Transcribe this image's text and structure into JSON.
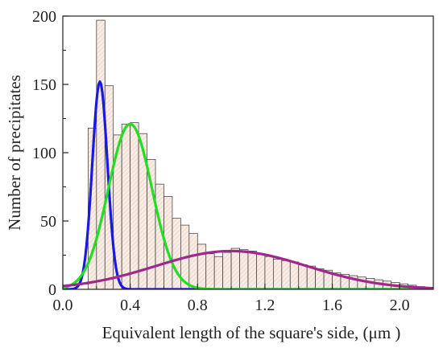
{
  "chart_data": {
    "type": "bar",
    "xlabel": "Equivalent length of the square's side,  (μm )",
    "ylabel": "Number of precipitates",
    "xlim": [
      0.0,
      2.2
    ],
    "ylim": [
      0,
      200
    ],
    "x_ticks": [
      0.0,
      0.4,
      0.8,
      1.2,
      1.6,
      2.0
    ],
    "x_tick_labels": [
      "0.0",
      "0.4",
      "0.8",
      "1.2",
      "1.6",
      "2.0"
    ],
    "y_ticks": [
      0,
      50,
      100,
      150,
      200
    ],
    "y_tick_labels": [
      "0",
      "50",
      "100",
      "150",
      "200"
    ],
    "bin_width": 0.05,
    "bins": [
      {
        "x0": 0.15,
        "count": 118
      },
      {
        "x0": 0.2,
        "count": 197
      },
      {
        "x0": 0.25,
        "count": 149
      },
      {
        "x0": 0.3,
        "count": 113
      },
      {
        "x0": 0.35,
        "count": 121
      },
      {
        "x0": 0.4,
        "count": 122
      },
      {
        "x0": 0.45,
        "count": 114
      },
      {
        "x0": 0.5,
        "count": 95
      },
      {
        "x0": 0.55,
        "count": 77
      },
      {
        "x0": 0.6,
        "count": 68
      },
      {
        "x0": 0.65,
        "count": 52
      },
      {
        "x0": 0.7,
        "count": 47
      },
      {
        "x0": 0.75,
        "count": 41
      },
      {
        "x0": 0.8,
        "count": 33
      },
      {
        "x0": 0.85,
        "count": 26
      },
      {
        "x0": 0.9,
        "count": 24
      },
      {
        "x0": 0.95,
        "count": 27
      },
      {
        "x0": 1.0,
        "count": 30
      },
      {
        "x0": 1.05,
        "count": 29
      },
      {
        "x0": 1.1,
        "count": 28
      },
      {
        "x0": 1.15,
        "count": 26
      },
      {
        "x0": 1.2,
        "count": 24
      },
      {
        "x0": 1.25,
        "count": 22
      },
      {
        "x0": 1.3,
        "count": 21
      },
      {
        "x0": 1.35,
        "count": 20
      },
      {
        "x0": 1.4,
        "count": 18
      },
      {
        "x0": 1.45,
        "count": 17
      },
      {
        "x0": 1.5,
        "count": 15
      },
      {
        "x0": 1.55,
        "count": 14
      },
      {
        "x0": 1.6,
        "count": 12
      },
      {
        "x0": 1.65,
        "count": 11
      },
      {
        "x0": 1.7,
        "count": 10
      },
      {
        "x0": 1.75,
        "count": 9
      },
      {
        "x0": 1.8,
        "count": 8
      },
      {
        "x0": 1.85,
        "count": 7
      },
      {
        "x0": 1.9,
        "count": 6
      },
      {
        "x0": 1.95,
        "count": 5
      },
      {
        "x0": 2.0,
        "count": 4
      },
      {
        "x0": 2.05,
        "count": 3
      },
      {
        "x0": 2.1,
        "count": 2
      }
    ],
    "fit_curves": [
      {
        "color": "#1a1adf",
        "type": "gaussian",
        "amplitude": 152,
        "mean": 0.22,
        "sigma": 0.045
      },
      {
        "color": "#22dd22",
        "type": "gaussian",
        "amplitude": 121,
        "mean": 0.4,
        "sigma": 0.13
      },
      {
        "color": "#a0288c",
        "type": "gaussian",
        "amplitude": 28,
        "mean": 1.0,
        "sigma": 0.45
      }
    ],
    "bar_fill": "#f8ece4",
    "bar_stroke": "#333333",
    "grid": false
  }
}
